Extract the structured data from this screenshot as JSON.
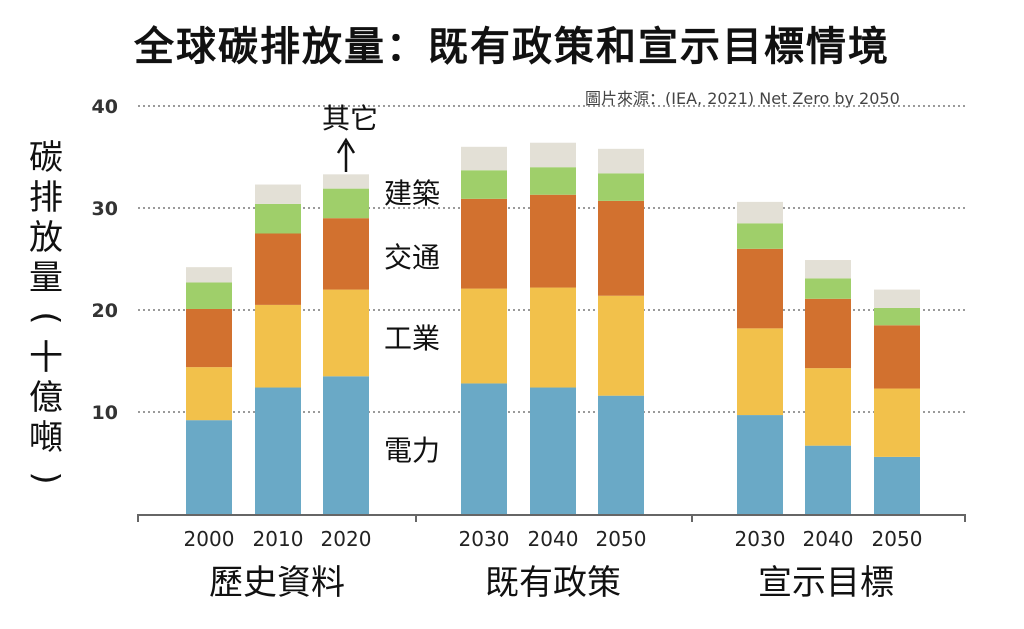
{
  "title": "全球碳排放量：既有政策和宣示目標情境",
  "source": "圖片來源：(IEA, 2021) Net Zero by 2050",
  "ylabel": "碳排放量（十億噸）",
  "colors": {
    "電力": "#6aa9c6",
    "工業": "#f2c14b",
    "交通": "#d2712f",
    "建築": "#9fcf6a",
    "其它": "#e3e0d6"
  },
  "chart_data": {
    "type": "bar",
    "stacked": true,
    "ylim": [
      0,
      40
    ],
    "yticks": [
      10,
      20,
      30,
      40
    ],
    "grid": true,
    "groups": [
      {
        "label": "歷史資料",
        "categories": [
          "2000",
          "2010",
          "2020"
        ]
      },
      {
        "label": "既有政策",
        "categories": [
          "2030",
          "2040",
          "2050"
        ]
      },
      {
        "label": "宣示目標",
        "categories": [
          "2030",
          "2040",
          "2050"
        ]
      }
    ],
    "categories": [
      "2000",
      "2010",
      "2020",
      "2030",
      "2040",
      "2050",
      "2030",
      "2040",
      "2050"
    ],
    "series": [
      {
        "name": "電力",
        "values": [
          9.2,
          12.4,
          13.5,
          12.8,
          12.4,
          11.6,
          9.7,
          6.7,
          5.6
        ]
      },
      {
        "name": "工業",
        "values": [
          5.2,
          8.1,
          8.5,
          9.3,
          9.8,
          9.8,
          8.5,
          7.6,
          6.7
        ]
      },
      {
        "name": "交通",
        "values": [
          5.7,
          7.0,
          7.0,
          8.8,
          9.1,
          9.3,
          7.8,
          6.8,
          6.2
        ]
      },
      {
        "name": "建築",
        "values": [
          2.6,
          2.9,
          2.9,
          2.8,
          2.7,
          2.7,
          2.5,
          2.0,
          1.7
        ]
      },
      {
        "name": "其它",
        "values": [
          1.5,
          1.9,
          1.4,
          2.3,
          2.4,
          2.4,
          2.1,
          1.8,
          1.8
        ]
      }
    ],
    "annotations": [
      "其它",
      "建築",
      "交通",
      "工業",
      "電力"
    ]
  }
}
